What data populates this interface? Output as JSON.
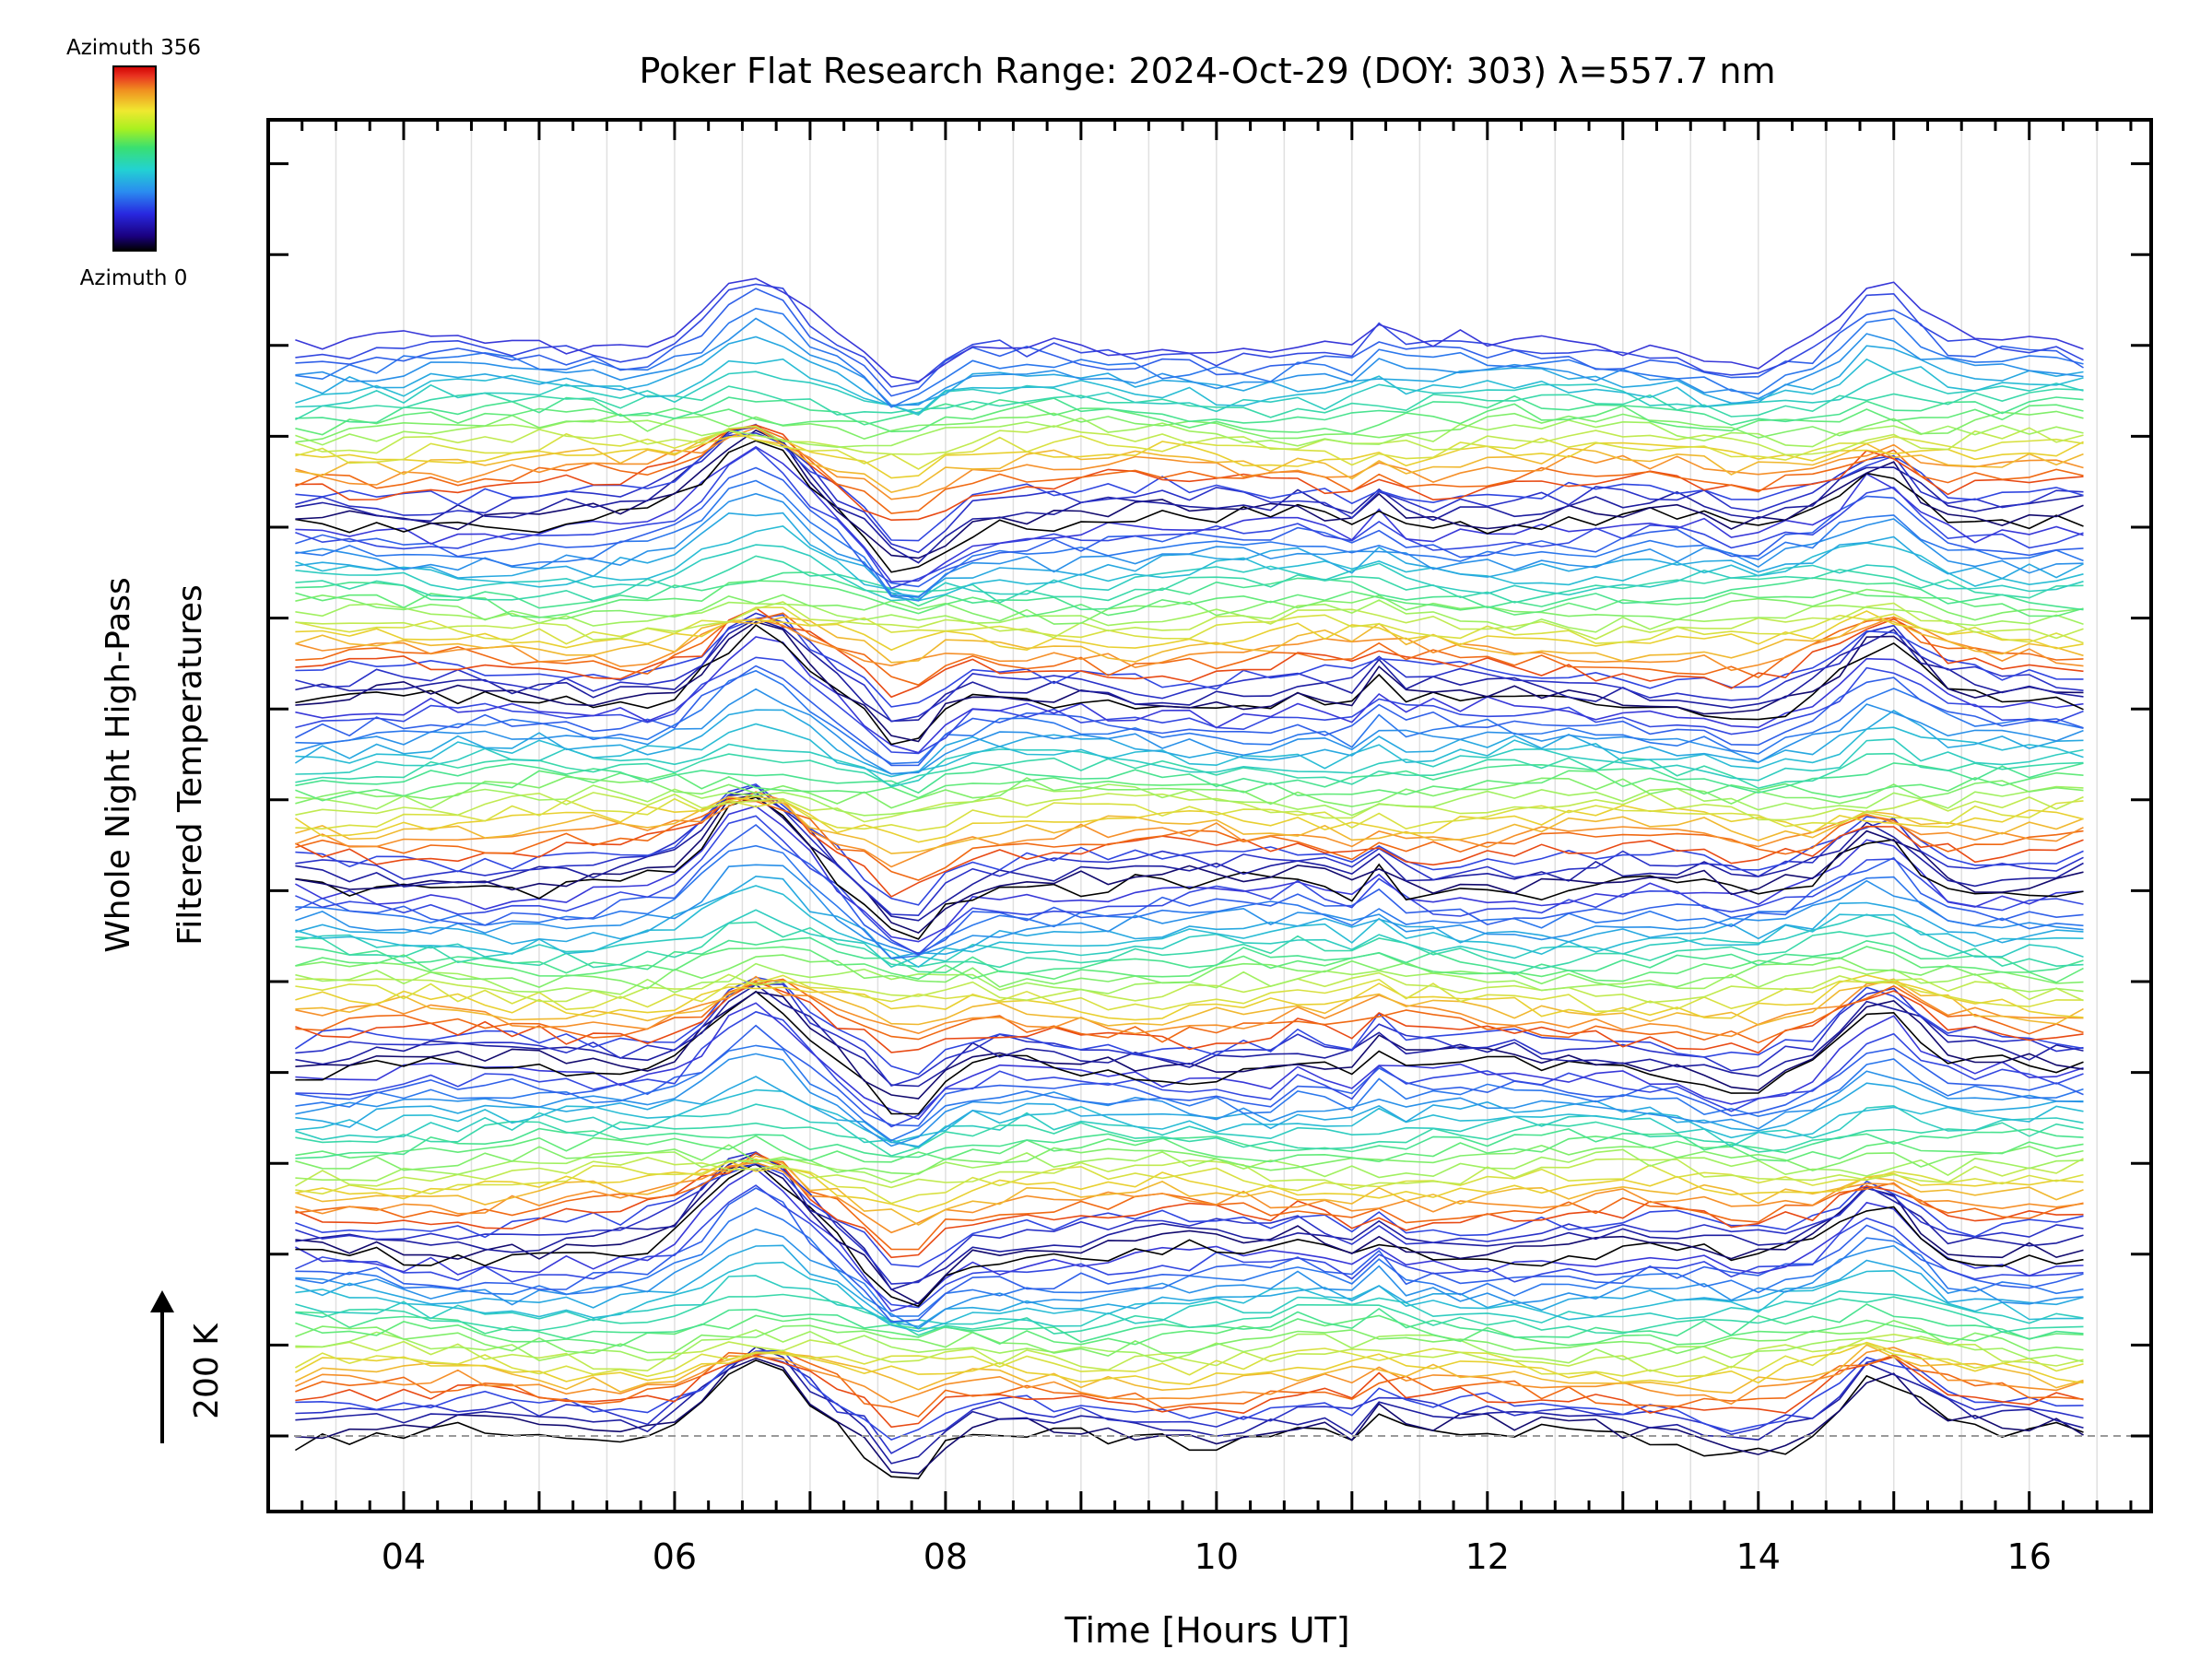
{
  "chart_data": {
    "type": "line",
    "title": "Poker Flat Research Range: 2024-Oct-29 (DOY: 303) λ=557.7 nm",
    "xlabel": "Time [Hours UT]",
    "ylabel_line1": "Whole Night High-Pass",
    "ylabel_line2": "Filtered Temperatures",
    "scale_label": "200 K",
    "scale_arrow": "↑",
    "colorbar": {
      "top_label": "Azimuth 356",
      "bottom_label": "Azimuth 0",
      "colormap": [
        "#000000",
        "#1a0080",
        "#2828e0",
        "#2a8cf0",
        "#22d2d2",
        "#3ae070",
        "#a8f020",
        "#f0e830",
        "#f09020",
        "#e83020",
        "#d00000"
      ]
    },
    "xlim": [
      3.0,
      16.9
    ],
    "x_ticks": [
      4,
      6,
      8,
      10,
      12,
      14,
      16
    ],
    "x_tick_labels": [
      "04",
      "06",
      "08",
      "10",
      "12",
      "14",
      "16"
    ],
    "x_start": 3.2,
    "x_end": 16.4,
    "x_step": 0.2,
    "num_series": 150,
    "group_size": 25,
    "line_color_cycle": [
      "#000000",
      "#120a6e",
      "#1e1ea0",
      "#2a32c8",
      "#3046e0",
      "#e84a14",
      "#f06a14",
      "#f5902a",
      "#f0b830",
      "#e8d030",
      "#d8e040",
      "#c0ea50",
      "#a0f060",
      "#80ee6a",
      "#62ea7a",
      "#4ae290",
      "#3ad8aa",
      "#30ccc0",
      "#2abcd4",
      "#28a8e0",
      "#2a90e8",
      "#2c78ec",
      "#3060e8",
      "#3448e0",
      "#3838d8"
    ],
    "features": [
      {
        "center": 6.6,
        "width": 0.45,
        "amplitude_K": 65
      },
      {
        "center": 7.7,
        "width": 0.3,
        "amplitude_K": -40
      },
      {
        "center": 10.7,
        "width": 0.08,
        "amplitude_K": 35
      },
      {
        "center": 10.9,
        "width": 0.08,
        "amplitude_K": -25
      },
      {
        "center": 11.2,
        "width": 0.12,
        "amplitude_K": 15
      },
      {
        "center": 14.9,
        "width": 0.35,
        "amplitude_K": 45
      },
      {
        "center": 13.9,
        "width": 0.3,
        "amplitude_K": -12
      }
    ],
    "offset_per_series_K": 29.4,
    "baseline_dashed": true,
    "grid": "vertical-light"
  }
}
